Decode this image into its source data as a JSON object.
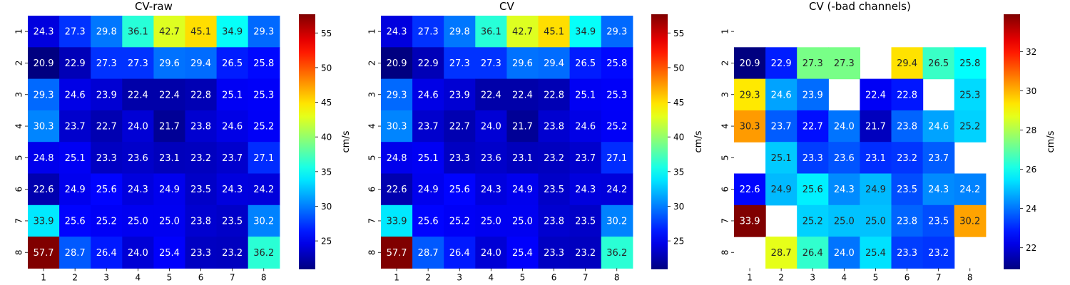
{
  "chart_data": [
    {
      "type": "heatmap",
      "title": "CV-raw",
      "colorbar_label": "cm/s",
      "colormap": "jet",
      "vmin": 20.9,
      "vmax": 57.7,
      "colorbar_ticks": [
        25,
        30,
        35,
        40,
        45,
        50,
        55
      ],
      "x_ticks": [
        "1",
        "2",
        "3",
        "4",
        "5",
        "6",
        "7",
        "8"
      ],
      "y_ticks": [
        "1",
        "2",
        "3",
        "4",
        "5",
        "6",
        "7",
        "8"
      ],
      "values": [
        [
          24.3,
          27.3,
          29.8,
          36.1,
          42.7,
          45.1,
          34.9,
          29.3
        ],
        [
          20.9,
          22.9,
          27.3,
          27.3,
          29.6,
          29.4,
          26.5,
          25.8
        ],
        [
          29.3,
          24.6,
          23.9,
          22.4,
          22.4,
          22.8,
          25.1,
          25.3
        ],
        [
          30.3,
          23.7,
          22.7,
          24.0,
          21.7,
          23.8,
          24.6,
          25.2
        ],
        [
          24.8,
          25.1,
          23.3,
          23.6,
          23.1,
          23.2,
          23.7,
          27.1
        ],
        [
          22.6,
          24.9,
          25.6,
          24.3,
          24.9,
          23.5,
          24.3,
          24.2
        ],
        [
          33.9,
          25.6,
          25.2,
          25.0,
          25.0,
          23.8,
          23.5,
          30.2
        ],
        [
          57.7,
          28.7,
          26.4,
          24.0,
          25.4,
          23.3,
          23.2,
          36.2
        ]
      ]
    },
    {
      "type": "heatmap",
      "title": "CV",
      "colorbar_label": "cm/s",
      "colormap": "jet",
      "vmin": 20.9,
      "vmax": 57.7,
      "colorbar_ticks": [
        25,
        30,
        35,
        40,
        45,
        50,
        55
      ],
      "x_ticks": [
        "1",
        "2",
        "3",
        "4",
        "5",
        "6",
        "7",
        "8"
      ],
      "y_ticks": [
        "1",
        "2",
        "3",
        "4",
        "5",
        "6",
        "7",
        "8"
      ],
      "values": [
        [
          24.3,
          27.3,
          29.8,
          36.1,
          42.7,
          45.1,
          34.9,
          29.3
        ],
        [
          20.9,
          22.9,
          27.3,
          27.3,
          29.6,
          29.4,
          26.5,
          25.8
        ],
        [
          29.3,
          24.6,
          23.9,
          22.4,
          22.4,
          22.8,
          25.1,
          25.3
        ],
        [
          30.3,
          23.7,
          22.7,
          24.0,
          21.7,
          23.8,
          24.6,
          25.2
        ],
        [
          24.8,
          25.1,
          23.3,
          23.6,
          23.1,
          23.2,
          23.7,
          27.1
        ],
        [
          22.6,
          24.9,
          25.6,
          24.3,
          24.9,
          23.5,
          24.3,
          24.2
        ],
        [
          33.9,
          25.6,
          25.2,
          25.0,
          25.0,
          23.8,
          23.5,
          30.2
        ],
        [
          57.7,
          28.7,
          26.4,
          24.0,
          25.4,
          23.3,
          23.2,
          36.2
        ]
      ]
    },
    {
      "type": "heatmap",
      "title": "CV (-bad channels)",
      "colorbar_label": "cm/s",
      "colormap": "jet",
      "vmin": 20.9,
      "vmax": 33.9,
      "colorbar_ticks": [
        22,
        24,
        26,
        28,
        30,
        32
      ],
      "x_ticks": [
        "1",
        "2",
        "3",
        "4",
        "5",
        "6",
        "7",
        "8"
      ],
      "y_ticks": [
        "1",
        "2",
        "3",
        "4",
        "5",
        "6",
        "7",
        "8"
      ],
      "values": [
        [
          null,
          null,
          null,
          null,
          null,
          null,
          null,
          null
        ],
        [
          20.9,
          22.9,
          27.3,
          27.3,
          null,
          29.4,
          26.5,
          25.8
        ],
        [
          29.3,
          24.6,
          23.9,
          null,
          22.4,
          22.8,
          null,
          25.3
        ],
        [
          30.3,
          23.7,
          22.7,
          24.0,
          21.7,
          23.8,
          24.6,
          25.2
        ],
        [
          null,
          25.1,
          23.3,
          23.6,
          23.1,
          23.2,
          23.7,
          null
        ],
        [
          22.6,
          24.9,
          25.6,
          24.3,
          24.9,
          23.5,
          24.3,
          24.2
        ],
        [
          33.9,
          null,
          25.2,
          25.0,
          25.0,
          23.8,
          23.5,
          30.2
        ],
        [
          null,
          28.7,
          26.4,
          24.0,
          25.4,
          23.3,
          23.2,
          null
        ]
      ]
    }
  ]
}
